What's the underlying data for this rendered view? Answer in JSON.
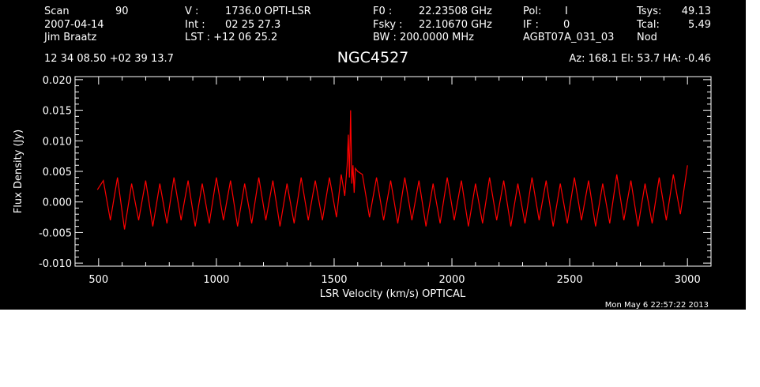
{
  "header": {
    "row1": [
      {
        "label": "Scan",
        "value": "90"
      },
      {
        "label": "V   :",
        "value": "1736.0 OPTI-LSR"
      },
      {
        "label": "F0    :",
        "value": "22.23508 GHz"
      },
      {
        "label": "Pol:",
        "value": "I"
      },
      {
        "label": "Tsys:",
        "value": "49.13"
      }
    ],
    "row2": [
      {
        "label": "2007-04-14",
        "value": ""
      },
      {
        "label": "Int  :",
        "value": "02 25 27.3"
      },
      {
        "label": "Fsky :",
        "value": "22.10670 GHz"
      },
      {
        "label": "IF  :",
        "value": "0"
      },
      {
        "label": "Tcal:",
        "value": "5.49"
      }
    ],
    "row3": [
      {
        "label": "Jim Braatz",
        "value": ""
      },
      {
        "label": "LST : +12 06 25.2",
        "value": ""
      },
      {
        "label": "BW   : 200.0000 MHz",
        "value": ""
      },
      {
        "label": "AGBT07A_031_03",
        "value": ""
      },
      {
        "label": "Nod",
        "value": ""
      }
    ],
    "coords": "12 34 08.50  +02 39 13.7",
    "source": "NGC4527",
    "pointing": "Az: 168.1   El:  53.7   HA: -0.46"
  },
  "timestamp": "Mon May  6 22:57:22 2013",
  "colors": {
    "background": "#000000",
    "axes": "#ffffff",
    "series": "#ff0000",
    "page": "#ffffff"
  },
  "chart_data": {
    "type": "line",
    "title": "NGC4527",
    "xlabel": "LSR Velocity (km/s) OPTICAL",
    "ylabel": "Flux Density (Jy)",
    "xlim": [
      400,
      3100
    ],
    "ylim": [
      -0.0105,
      0.0205
    ],
    "xticks": [
      500,
      1000,
      1500,
      2000,
      2500,
      3000
    ],
    "xtick_labels": [
      "500",
      "1000",
      "1500",
      "2000",
      "2500",
      "3000"
    ],
    "yticks": [
      -0.01,
      -0.005,
      0.0,
      0.005,
      0.01,
      0.015,
      0.02
    ],
    "ytick_labels": [
      "-0.010",
      "-0.005",
      "0.000",
      "0.005",
      "0.010",
      "0.015",
      "0.020"
    ],
    "grid": false,
    "series": [
      {
        "color": "#ff0000",
        "x": [
          495,
          520,
          550,
          580,
          610,
          640,
          670,
          700,
          730,
          760,
          790,
          820,
          850,
          880,
          910,
          940,
          970,
          1000,
          1030,
          1060,
          1090,
          1120,
          1150,
          1180,
          1210,
          1240,
          1270,
          1300,
          1330,
          1360,
          1390,
          1420,
          1450,
          1480,
          1510,
          1530,
          1545,
          1555,
          1560,
          1565,
          1570,
          1575,
          1580,
          1585,
          1590,
          1600,
          1620,
          1650,
          1680,
          1710,
          1740,
          1770,
          1800,
          1830,
          1860,
          1890,
          1920,
          1950,
          1980,
          2010,
          2040,
          2070,
          2100,
          2130,
          2160,
          2190,
          2220,
          2250,
          2280,
          2310,
          2340,
          2370,
          2400,
          2430,
          2460,
          2490,
          2520,
          2550,
          2580,
          2610,
          2640,
          2670,
          2700,
          2730,
          2760,
          2790,
          2820,
          2850,
          2880,
          2910,
          2940,
          2970,
          3000
        ],
        "y": [
          0.002,
          0.0035,
          -0.003,
          0.004,
          -0.0045,
          0.003,
          -0.003,
          0.0035,
          -0.004,
          0.003,
          -0.0035,
          0.004,
          -0.003,
          0.0035,
          -0.004,
          0.003,
          -0.0035,
          0.004,
          -0.003,
          0.0035,
          -0.004,
          0.003,
          -0.0035,
          0.004,
          -0.003,
          0.0035,
          -0.004,
          0.003,
          -0.0035,
          0.004,
          -0.003,
          0.0035,
          -0.003,
          0.004,
          -0.0025,
          0.0045,
          0.001,
          0.006,
          0.011,
          0.004,
          0.015,
          0.003,
          0.006,
          0.0015,
          0.0055,
          0.005,
          0.0045,
          -0.0025,
          0.004,
          -0.003,
          0.0035,
          -0.0035,
          0.004,
          -0.003,
          0.0035,
          -0.004,
          0.003,
          -0.0035,
          0.004,
          -0.003,
          0.0035,
          -0.004,
          0.003,
          -0.0035,
          0.004,
          -0.003,
          0.0035,
          -0.004,
          0.003,
          -0.0035,
          0.004,
          -0.003,
          0.0035,
          -0.004,
          0.003,
          -0.0035,
          0.004,
          -0.003,
          0.0035,
          -0.004,
          0.003,
          -0.0035,
          0.0045,
          -0.003,
          0.0035,
          -0.004,
          0.003,
          -0.0035,
          0.004,
          -0.003,
          0.0045,
          -0.002,
          0.006
        ]
      }
    ]
  }
}
